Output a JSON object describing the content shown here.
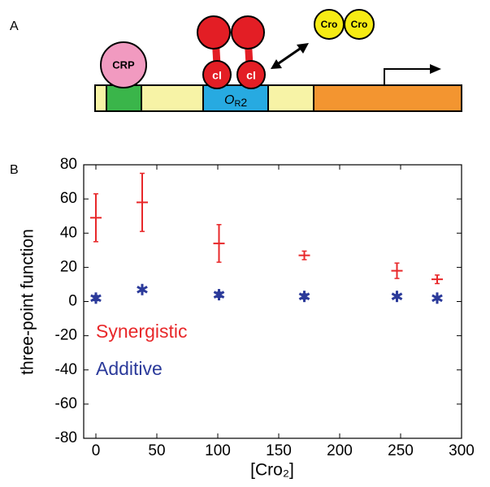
{
  "panel_labels": [
    "A",
    "B"
  ],
  "diagram": {
    "crp": "CRP",
    "ci_left": "cI",
    "ci_right": "cI",
    "cro_left": "Cro",
    "cro_right": "Cro",
    "operator_label": {
      "main": "O",
      "sub": "R",
      "tail": "2"
    }
  },
  "chart_data": {
    "type": "errorbar",
    "xlabel": "[Cro₂]",
    "ylabel": "three-point function",
    "x": [
      0,
      38,
      101,
      171,
      247,
      280
    ],
    "series": [
      {
        "name": "Synergistic",
        "color": "#e8282a",
        "marker": "hline",
        "values": [
          49,
          58,
          34,
          27,
          18,
          13
        ],
        "errors": [
          14,
          17,
          11,
          2.5,
          4.5,
          2.5
        ]
      },
      {
        "name": "Additive",
        "color": "#2b3a9a",
        "marker": "asterisk",
        "values": [
          2,
          7,
          4,
          3,
          3,
          2
        ],
        "errors": [
          1.5,
          1,
          1.5,
          1.5,
          1,
          1
        ]
      }
    ],
    "xlim": [
      -10,
      300
    ],
    "ylim": [
      -80,
      80
    ],
    "xticks": [
      0,
      50,
      100,
      150,
      200,
      250,
      300
    ],
    "yticks": [
      -80,
      -60,
      -40,
      -20,
      0,
      20,
      40,
      60,
      80
    ],
    "grid": false
  }
}
